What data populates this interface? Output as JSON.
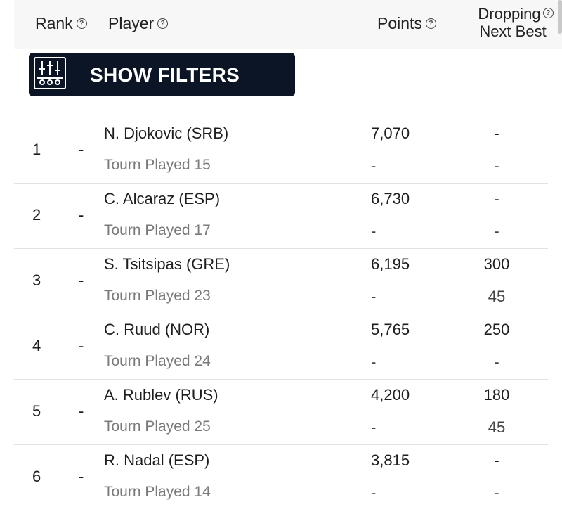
{
  "header": {
    "rank": "Rank",
    "player": "Player",
    "points": "Points",
    "dropping": "Dropping",
    "next_best": "Next Best",
    "help_glyph": "?"
  },
  "filters": {
    "label": "SHOW FILTERS"
  },
  "rows": [
    {
      "rank": "1",
      "move": "-",
      "player": "N. Djokovic (SRB)",
      "tourn": "Tourn Played 15",
      "points": "7,070",
      "points_sub": "-",
      "dropping": "-",
      "next_best": "-"
    },
    {
      "rank": "2",
      "move": "-",
      "player": "C. Alcaraz (ESP)",
      "tourn": "Tourn Played 17",
      "points": "6,730",
      "points_sub": "-",
      "dropping": "-",
      "next_best": "-"
    },
    {
      "rank": "3",
      "move": "-",
      "player": "S. Tsitsipas (GRE)",
      "tourn": "Tourn Played 23",
      "points": "6,195",
      "points_sub": "-",
      "dropping": "300",
      "next_best": "45"
    },
    {
      "rank": "4",
      "move": "-",
      "player": "C. Ruud (NOR)",
      "tourn": "Tourn Played 24",
      "points": "5,765",
      "points_sub": "-",
      "dropping": "250",
      "next_best": "-"
    },
    {
      "rank": "5",
      "move": "-",
      "player": "A. Rublev (RUS)",
      "tourn": "Tourn Played 25",
      "points": "4,200",
      "points_sub": "-",
      "dropping": "180",
      "next_best": "45"
    },
    {
      "rank": "6",
      "move": "-",
      "player": "R. Nadal (ESP)",
      "tourn": "Tourn Played 14",
      "points": "3,815",
      "points_sub": "-",
      "dropping": "-",
      "next_best": "-"
    }
  ]
}
